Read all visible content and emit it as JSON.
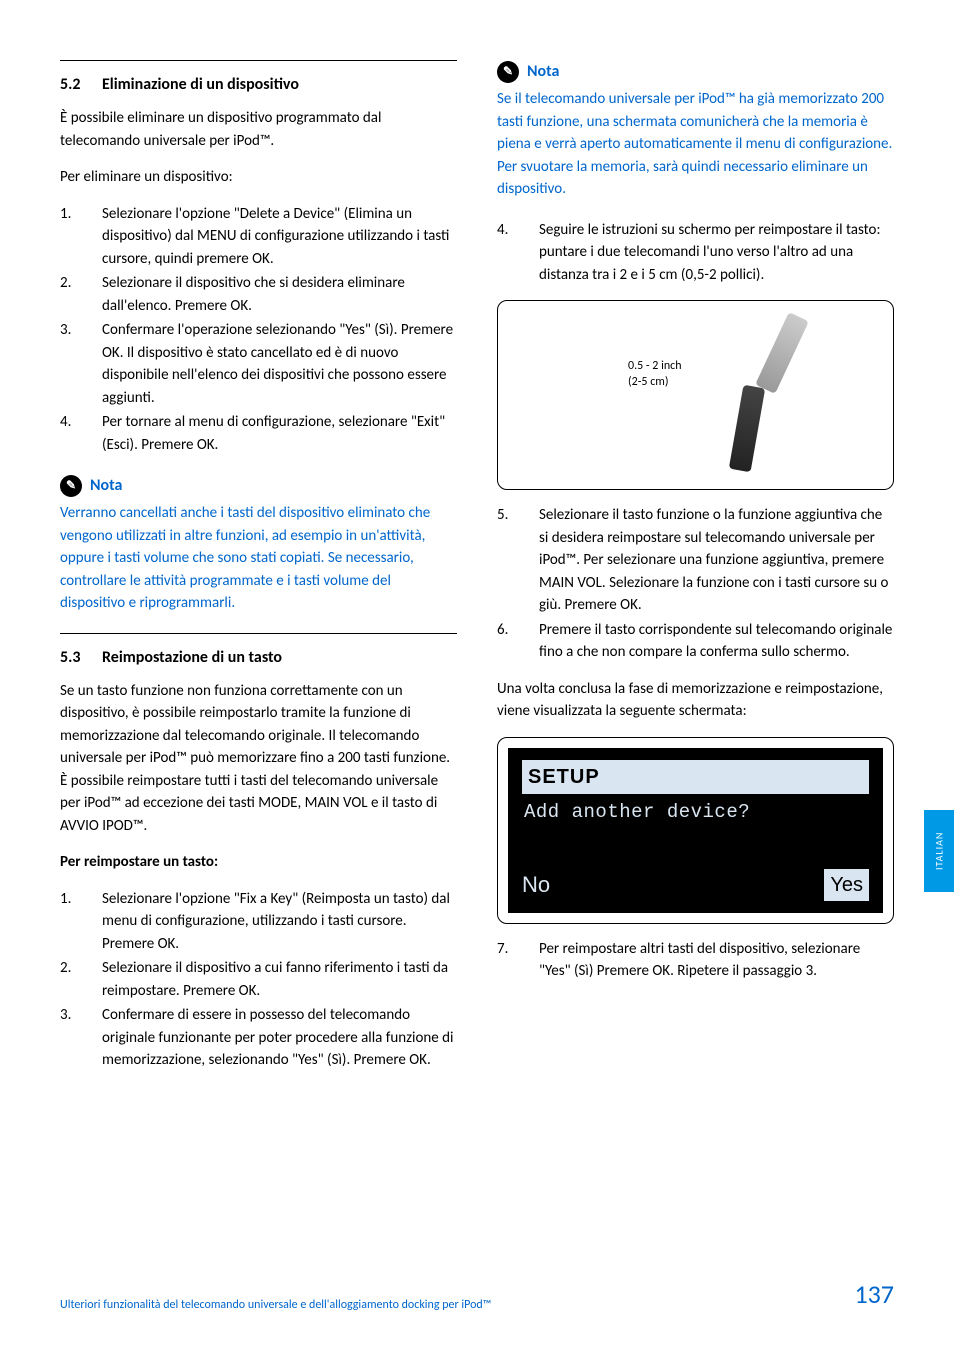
{
  "colors": {
    "link_blue": "#0066cc",
    "tab_blue": "#0099e5",
    "lcd_bg": "#000000",
    "lcd_fg": "#d9e6f2",
    "text": "#000000",
    "bg": "#ffffff"
  },
  "typography": {
    "body_size": 15,
    "heading_size": 16,
    "footer_size": 12,
    "pagenum_size": 26
  },
  "left": {
    "h52_num": "5.2",
    "h52_title": "Eliminazione di un dispositivo",
    "p1": "È possibile eliminare un dispositivo programmato dal telecomando universale per iPod™.",
    "p2": "Per eliminare un dispositivo:",
    "l1": {
      "i1": "Selezionare l'opzione \"Delete a Device\" (Elimina un dispositivo) dal MENU di configurazione utilizzando i tasti cursore, quindi premere OK.",
      "i2": "Selezionare il dispositivo che si desidera eliminare dall'elenco. Premere OK.",
      "i3": "Confermare l'operazione selezionando \"Yes\" (Sì). Premere OK. Il dispositivo è stato cancellato ed è di nuovo disponibile nell'elenco dei dispositivi che possono essere aggiunti.",
      "i4": "Per tornare al menu di configurazione, selezionare \"Exit\" (Esci). Premere OK."
    },
    "note1_title": "Nota",
    "note1_text": "Verranno cancellati anche i tasti del dispositivo eliminato che vengono utilizzati in altre funzioni, ad esempio in un'attività, oppure i tasti volume che sono stati copiati. Se necessario, controllare le attività programmate e i tasti volume del dispositivo e riprogrammarli.",
    "h53_num": "5.3",
    "h53_title": "Reimpostazione di un tasto",
    "p3": "Se un tasto funzione non funziona correttamente con un dispositivo, è possibile reimpostarlo tramite la funzione di memorizzazione dal telecomando originale. Il telecomando universale per iPod™ può memorizzare fino a 200 tasti funzione. È possibile reimpostare tutti i tasti del telecomando universale per iPod™ ad eccezione dei tasti MODE, MAIN VOL e il tasto di AVVIO IPOD™.",
    "p4_bold": "Per reimpostare un tasto:",
    "l2": {
      "i1": "Selezionare l'opzione \"Fix a Key\" (Reimposta un tasto) dal menu di configurazione, utilizzando i tasti cursore. Premere OK.",
      "i2": "Selezionare il dispositivo a cui fanno riferimento i tasti da reimpostare. Premere OK.",
      "i3": "Confermare di essere in possesso del telecomando originale funzionante per poter procedere alla funzione di memorizzazione, selezionando \"Yes\" (Sì). Premere OK."
    }
  },
  "right": {
    "note2_title": "Nota",
    "note2_text": "Se il telecomando universale per iPod™ ha già memorizzato 200 tasti funzione, una schermata comunicherà che la memoria è piena e verrà aperto automaticamente il menu di configurazione. Per svuotare la memoria, sarà quindi necessario eliminare un dispositivo.",
    "l3": {
      "i4": "Seguire le istruzioni su schermo per reimpostare il tasto: puntare i due telecomandi l'uno verso l'altro ad una distanza tra i 2 e i 5 cm (0,5-2 pollici)."
    },
    "fig_label_1": "0.5 - 2 inch",
    "fig_label_2": "(2-5 cm)",
    "l4": {
      "i5": "Selezionare il tasto funzione o la funzione aggiuntiva che si desidera reimpostare sul telecomando universale per iPod™. Per selezionare una funzione aggiuntiva, premere MAIN VOL. Selezionare la funzione con i tasti cursore su o giù. Premere OK.",
      "i6": "Premere il tasto corrispondente sul telecomando originale fino a che non compare la conferma sullo schermo."
    },
    "p5": "Una volta conclusa la fase di memorizzazione e reimpostazione, viene visualizzata la seguente schermata:",
    "lcd": {
      "title": "SETUP",
      "line": "Add another device?",
      "no": "No",
      "yes": "Yes"
    },
    "l5": {
      "i7": "Per reimpostare altri tasti del dispositivo, selezionare \"Yes\" (Sì) Premere OK. Ripetere il passaggio 3."
    }
  },
  "side_tab": "ITALIAN",
  "footer_text": "Ulteriori funzionalità del telecomando universale e dell'alloggiamento docking per iPod™",
  "page_num": "137"
}
